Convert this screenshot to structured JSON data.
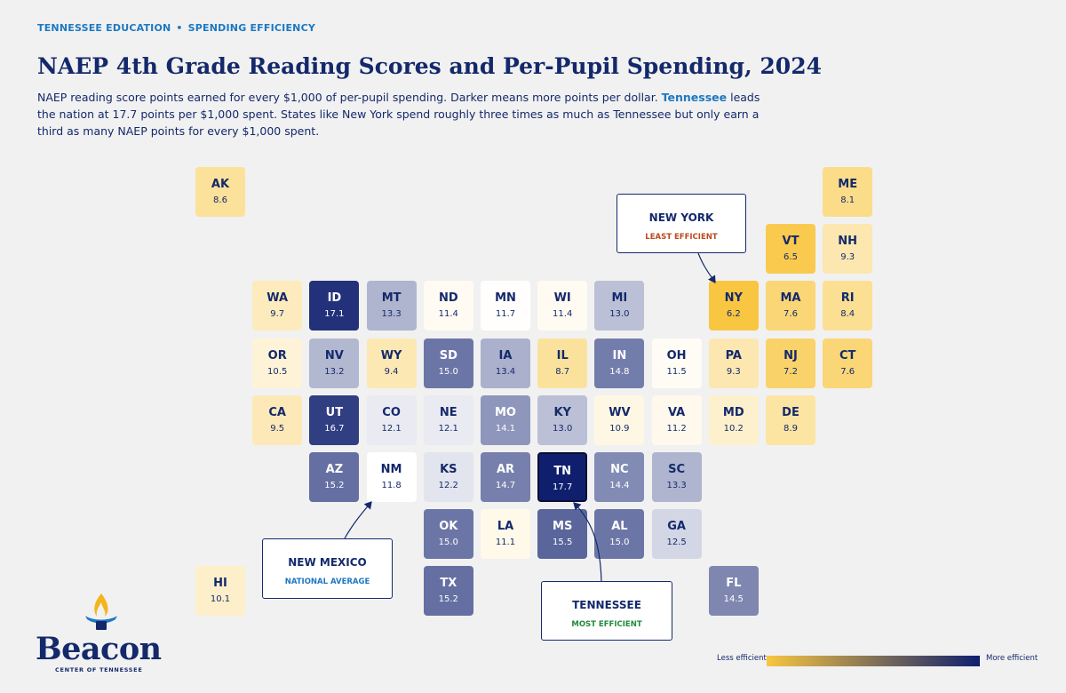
{
  "header": {
    "eyebrow_left": "TENNESSEE EDUCATION",
    "eyebrow_sep": "•",
    "eyebrow_right": "SPENDING EFFICIENCY",
    "title": "NAEP 4th Grade Reading Scores and Per-Pupil Spending, 2024",
    "subtitle_part1": "NAEP reading score points earned for every $1,000 of per-pupil spending. Darker means more points per dollar. ",
    "subtitle_highlight": "Tennessee",
    "subtitle_part2": " leads the nation at 17.7 points per $1,000 spent. States like New York spend roughly three times as much as Tennessee but only earn a third as many NAEP points for every $1,000 spent."
  },
  "colors": {
    "background": "#f1f1f1",
    "navy": "#14296b",
    "accent_blue": "#1d78c1",
    "scale_low": "#f8c640",
    "scale_mid": "#ffffff",
    "scale_high": "#0f1f6e",
    "tag_ny": "#b94a1e",
    "tag_tn": "#1f8a3c"
  },
  "map": {
    "value_unit": "NAEP points per $1,000 per-pupil spending",
    "scale_mid_value": 11.8,
    "states": [
      {
        "abbr": "AK",
        "value": "8.6",
        "row": 0,
        "col": 0
      },
      {
        "abbr": "ME",
        "value": "8.1",
        "row": 0,
        "col": 11
      },
      {
        "abbr": "VT",
        "value": "6.5",
        "row": 1,
        "col": 10
      },
      {
        "abbr": "NH",
        "value": "9.3",
        "row": 1,
        "col": 11
      },
      {
        "abbr": "WA",
        "value": "9.7",
        "row": 2,
        "col": 1
      },
      {
        "abbr": "ID",
        "value": "17.1",
        "row": 2,
        "col": 2
      },
      {
        "abbr": "MT",
        "value": "13.3",
        "row": 2,
        "col": 3
      },
      {
        "abbr": "ND",
        "value": "11.4",
        "row": 2,
        "col": 4
      },
      {
        "abbr": "MN",
        "value": "11.7",
        "row": 2,
        "col": 5
      },
      {
        "abbr": "WI",
        "value": "11.4",
        "row": 2,
        "col": 6
      },
      {
        "abbr": "MI",
        "value": "13.0",
        "row": 2,
        "col": 7
      },
      {
        "abbr": "NY",
        "value": "6.2",
        "row": 2,
        "col": 9
      },
      {
        "abbr": "MA",
        "value": "7.6",
        "row": 2,
        "col": 10
      },
      {
        "abbr": "RI",
        "value": "8.4",
        "row": 2,
        "col": 11
      },
      {
        "abbr": "OR",
        "value": "10.5",
        "row": 3,
        "col": 1
      },
      {
        "abbr": "NV",
        "value": "13.2",
        "row": 3,
        "col": 2
      },
      {
        "abbr": "WY",
        "value": "9.4",
        "row": 3,
        "col": 3
      },
      {
        "abbr": "SD",
        "value": "15.0",
        "row": 3,
        "col": 4
      },
      {
        "abbr": "IA",
        "value": "13.4",
        "row": 3,
        "col": 5
      },
      {
        "abbr": "IL",
        "value": "8.7",
        "row": 3,
        "col": 6
      },
      {
        "abbr": "IN",
        "value": "14.8",
        "row": 3,
        "col": 7
      },
      {
        "abbr": "OH",
        "value": "11.5",
        "row": 3,
        "col": 8
      },
      {
        "abbr": "PA",
        "value": "9.3",
        "row": 3,
        "col": 9
      },
      {
        "abbr": "NJ",
        "value": "7.2",
        "row": 3,
        "col": 10
      },
      {
        "abbr": "CT",
        "value": "7.6",
        "row": 3,
        "col": 11
      },
      {
        "abbr": "CA",
        "value": "9.5",
        "row": 4,
        "col": 1
      },
      {
        "abbr": "UT",
        "value": "16.7",
        "row": 4,
        "col": 2
      },
      {
        "abbr": "CO",
        "value": "12.1",
        "row": 4,
        "col": 3
      },
      {
        "abbr": "NE",
        "value": "12.1",
        "row": 4,
        "col": 4
      },
      {
        "abbr": "MO",
        "value": "14.1",
        "row": 4,
        "col": 5
      },
      {
        "abbr": "KY",
        "value": "13.0",
        "row": 4,
        "col": 6
      },
      {
        "abbr": "WV",
        "value": "10.9",
        "row": 4,
        "col": 7
      },
      {
        "abbr": "VA",
        "value": "11.2",
        "row": 4,
        "col": 8
      },
      {
        "abbr": "MD",
        "value": "10.2",
        "row": 4,
        "col": 9
      },
      {
        "abbr": "DE",
        "value": "8.9",
        "row": 4,
        "col": 10
      },
      {
        "abbr": "AZ",
        "value": "15.2",
        "row": 5,
        "col": 2
      },
      {
        "abbr": "NM",
        "value": "11.8",
        "row": 5,
        "col": 3
      },
      {
        "abbr": "KS",
        "value": "12.2",
        "row": 5,
        "col": 4
      },
      {
        "abbr": "AR",
        "value": "14.7",
        "row": 5,
        "col": 5
      },
      {
        "abbr": "TN",
        "value": "17.7",
        "row": 5,
        "col": 6,
        "highlight": true
      },
      {
        "abbr": "NC",
        "value": "14.4",
        "row": 5,
        "col": 7
      },
      {
        "abbr": "SC",
        "value": "13.3",
        "row": 5,
        "col": 8
      },
      {
        "abbr": "OK",
        "value": "15.0",
        "row": 6,
        "col": 4
      },
      {
        "abbr": "LA",
        "value": "11.1",
        "row": 6,
        "col": 5
      },
      {
        "abbr": "MS",
        "value": "15.5",
        "row": 6,
        "col": 6
      },
      {
        "abbr": "AL",
        "value": "15.0",
        "row": 6,
        "col": 7
      },
      {
        "abbr": "GA",
        "value": "12.5",
        "row": 6,
        "col": 8
      },
      {
        "abbr": "HI",
        "value": "10.1",
        "row": 7,
        "col": 0
      },
      {
        "abbr": "TX",
        "value": "15.2",
        "row": 7,
        "col": 4
      },
      {
        "abbr": "FL",
        "value": "14.5",
        "row": 7,
        "col": 9
      }
    ]
  },
  "callouts": {
    "ny": {
      "name": "NEW YORK",
      "tag": "LEAST EFFICIENT"
    },
    "nm": {
      "name": "NEW MEXICO",
      "tag": "NATIONAL AVERAGE"
    },
    "tn": {
      "name": "TENNESSEE",
      "tag": "MOST EFFICIENT"
    }
  },
  "legend": {
    "less_label": "Less efficient",
    "more_label": "More efficient"
  },
  "logo": {
    "word": "Beacon",
    "sub": "CENTER OF TENNESSEE"
  }
}
